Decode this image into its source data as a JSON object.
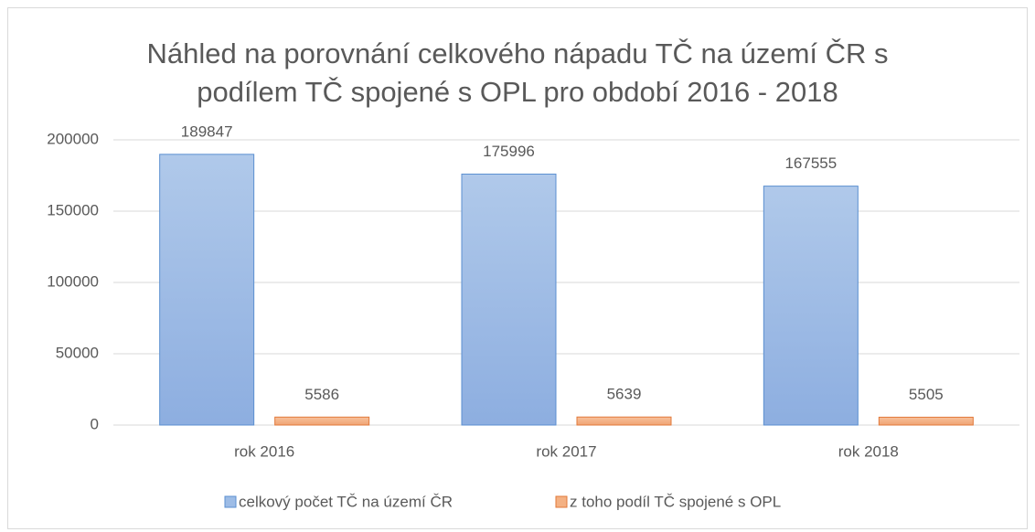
{
  "chart_data": {
    "type": "bar",
    "title": "Náhled na porovnání celkového nápadu TČ na území ČR s podílem TČ spojené s OPL pro období 2016 - 2018",
    "categories": [
      "rok 2016",
      "rok 2017",
      "rok 2018"
    ],
    "series": [
      {
        "name": "celkový počet TČ na území ČR",
        "color": "#9dbce6",
        "values": [
          189847,
          175996,
          167555
        ]
      },
      {
        "name": "z toho podíl TČ spojené s OPL",
        "color": "#f4b183",
        "values": [
          5586,
          5639,
          5505
        ]
      }
    ],
    "ylim": [
      0,
      200000
    ],
    "yticks": [
      0,
      50000,
      100000,
      150000,
      200000
    ],
    "grid": true,
    "legend": "bottom"
  }
}
